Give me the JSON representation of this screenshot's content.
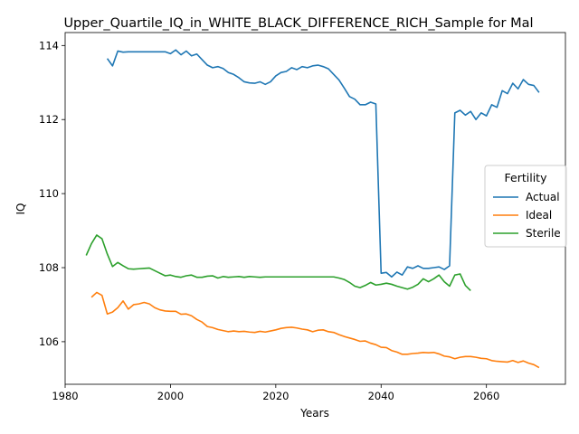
{
  "chart_data": {
    "type": "line",
    "title": "Upper_Quartile_IQ_in_WHITE_BLACK_DIFFERENCE_RICH_Sample for Mal",
    "xlabel": "Years",
    "ylabel": "IQ",
    "xlim": [
      1980,
      2075
    ],
    "ylim": [
      104.85,
      114.35
    ],
    "xticks": [
      "1980",
      "2000",
      "2020",
      "2040",
      "2060"
    ],
    "yticks": [
      "106",
      "108",
      "110",
      "112",
      "114"
    ],
    "grid": false,
    "legend": {
      "title": "Fertility",
      "placement": "center-right"
    },
    "series": [
      {
        "name": "Actual",
        "color": "#1f77b4",
        "x": [
          1988,
          1989,
          1990,
          1991,
          1992,
          1993,
          1994,
          1995,
          1996,
          1997,
          1998,
          1999,
          2000,
          2001,
          2002,
          2003,
          2004,
          2005,
          2006,
          2007,
          2008,
          2009,
          2010,
          2011,
          2012,
          2013,
          2014,
          2015,
          2016,
          2017,
          2018,
          2019,
          2020,
          2021,
          2022,
          2023,
          2024,
          2025,
          2026,
          2027,
          2028,
          2029,
          2030,
          2031,
          2032,
          2033,
          2034,
          2035,
          2036,
          2037,
          2038,
          2039,
          2040,
          2041,
          2042,
          2043,
          2044,
          2045,
          2046,
          2047,
          2048,
          2049,
          2050,
          2051,
          2052,
          2053,
          2054,
          2055,
          2056,
          2057,
          2058,
          2059,
          2060,
          2061,
          2062,
          2063,
          2064,
          2065,
          2066,
          2067,
          2068,
          2069,
          2070
        ],
        "values": [
          113.65,
          113.45,
          113.85,
          113.82,
          113.83,
          113.83,
          113.83,
          113.83,
          113.83,
          113.83,
          113.83,
          113.83,
          113.78,
          113.88,
          113.75,
          113.85,
          113.72,
          113.77,
          113.62,
          113.47,
          113.4,
          113.43,
          113.38,
          113.27,
          113.22,
          113.13,
          113.02,
          112.99,
          112.98,
          113.02,
          112.95,
          113.02,
          113.18,
          113.27,
          113.3,
          113.4,
          113.35,
          113.43,
          113.4,
          113.45,
          113.47,
          113.43,
          113.37,
          113.22,
          113.07,
          112.85,
          112.62,
          112.55,
          112.4,
          112.4,
          112.47,
          112.42,
          107.85,
          107.87,
          107.75,
          107.88,
          107.8,
          108.02,
          107.98,
          108.05,
          107.98,
          107.98,
          108.0,
          108.02,
          107.95,
          108.05,
          112.18,
          112.25,
          112.12,
          112.22,
          112.0,
          112.18,
          112.1,
          112.4,
          112.33,
          112.78,
          112.7,
          112.98,
          112.83,
          113.08,
          112.95,
          112.92,
          112.73
        ]
      },
      {
        "name": "Ideal",
        "color": "#ff7f0e",
        "x": [
          1985,
          1986,
          1987,
          1988,
          1989,
          1990,
          1991,
          1992,
          1993,
          1994,
          1995,
          1996,
          1997,
          1998,
          1999,
          2000,
          2001,
          2002,
          2003,
          2004,
          2005,
          2006,
          2007,
          2008,
          2009,
          2010,
          2011,
          2012,
          2013,
          2014,
          2015,
          2016,
          2017,
          2018,
          2019,
          2020,
          2021,
          2022,
          2023,
          2024,
          2025,
          2026,
          2027,
          2028,
          2029,
          2030,
          2031,
          2032,
          2033,
          2034,
          2035,
          2036,
          2037,
          2038,
          2039,
          2040,
          2041,
          2042,
          2043,
          2044,
          2045,
          2046,
          2047,
          2048,
          2049,
          2050,
          2051,
          2052,
          2053,
          2054,
          2055,
          2056,
          2057,
          2058,
          2059,
          2060,
          2061,
          2062,
          2063,
          2064,
          2065,
          2066,
          2067,
          2068,
          2069,
          2070
        ],
        "values": [
          107.2,
          107.33,
          107.25,
          106.75,
          106.8,
          106.92,
          107.1,
          106.88,
          107.0,
          107.02,
          107.06,
          107.02,
          106.92,
          106.86,
          106.83,
          106.82,
          106.82,
          106.74,
          106.75,
          106.7,
          106.6,
          106.53,
          106.41,
          106.38,
          106.33,
          106.3,
          106.27,
          106.29,
          106.27,
          106.28,
          106.26,
          106.25,
          106.28,
          106.26,
          106.29,
          106.32,
          106.36,
          106.38,
          106.39,
          106.37,
          106.34,
          106.32,
          106.27,
          106.31,
          106.32,
          106.27,
          106.25,
          106.19,
          106.14,
          106.1,
          106.06,
          106.01,
          106.02,
          105.96,
          105.92,
          105.85,
          105.84,
          105.76,
          105.72,
          105.66,
          105.66,
          105.68,
          105.69,
          105.71,
          105.7,
          105.71,
          105.67,
          105.61,
          105.59,
          105.54,
          105.58,
          105.6,
          105.6,
          105.58,
          105.55,
          105.54,
          105.49,
          105.47,
          105.46,
          105.45,
          105.49,
          105.44,
          105.48,
          105.42,
          105.38,
          105.3
        ]
      },
      {
        "name": "Sterile",
        "color": "#2ca02c",
        "x": [
          1984,
          1985,
          1986,
          1987,
          1988,
          1989,
          1990,
          1991,
          1992,
          1993,
          1994,
          1995,
          1996,
          1997,
          1998,
          1999,
          2000,
          2001,
          2002,
          2003,
          2004,
          2005,
          2006,
          2007,
          2008,
          2009,
          2010,
          2011,
          2012,
          2013,
          2014,
          2015,
          2016,
          2017,
          2018,
          2019,
          2020,
          2021,
          2022,
          2023,
          2024,
          2025,
          2026,
          2027,
          2028,
          2029,
          2030,
          2031,
          2032,
          2033,
          2034,
          2035,
          2036,
          2037,
          2038,
          2039,
          2040,
          2041,
          2042,
          2043,
          2044,
          2045,
          2046,
          2047,
          2048,
          2049,
          2050,
          2051,
          2052,
          2053,
          2054,
          2055,
          2056,
          2057
        ],
        "values": [
          108.33,
          108.65,
          108.88,
          108.78,
          108.37,
          108.03,
          108.14,
          108.05,
          107.97,
          107.96,
          107.97,
          107.98,
          107.99,
          107.92,
          107.85,
          107.78,
          107.8,
          107.76,
          107.74,
          107.78,
          107.8,
          107.74,
          107.74,
          107.77,
          107.78,
          107.72,
          107.76,
          107.74,
          107.75,
          107.76,
          107.74,
          107.76,
          107.75,
          107.74,
          107.75,
          107.75,
          107.75,
          107.75,
          107.75,
          107.75,
          107.75,
          107.75,
          107.75,
          107.75,
          107.75,
          107.75,
          107.75,
          107.75,
          107.72,
          107.68,
          107.6,
          107.5,
          107.46,
          107.52,
          107.6,
          107.53,
          107.55,
          107.58,
          107.55,
          107.5,
          107.46,
          107.42,
          107.47,
          107.55,
          107.7,
          107.62,
          107.7,
          107.8,
          107.62,
          107.5,
          107.8,
          107.83,
          107.52,
          107.38
        ]
      }
    ]
  }
}
